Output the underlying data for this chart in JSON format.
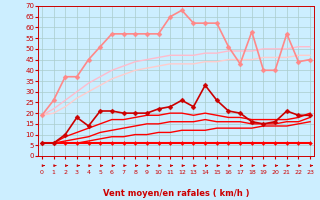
{
  "x": [
    0,
    1,
    2,
    3,
    4,
    5,
    6,
    7,
    8,
    9,
    10,
    11,
    12,
    13,
    14,
    15,
    16,
    17,
    18,
    19,
    20,
    21,
    22,
    23
  ],
  "lines": [
    {
      "y": [
        6,
        6,
        6,
        6,
        6,
        6,
        6,
        6,
        6,
        6,
        6,
        6,
        6,
        6,
        6,
        6,
        6,
        6,
        6,
        6,
        6,
        6,
        6,
        6
      ],
      "color": "#ff0000",
      "lw": 1.5,
      "marker": "D",
      "markersize": 2,
      "zorder": 4
    },
    {
      "y": [
        6,
        6,
        6,
        6,
        7,
        8,
        9,
        9,
        10,
        10,
        11,
        11,
        12,
        12,
        12,
        13,
        13,
        13,
        13,
        14,
        14,
        14,
        15,
        16
      ],
      "color": "#ff0000",
      "lw": 1.0,
      "marker": null,
      "zorder": 3
    },
    {
      "y": [
        6,
        6,
        7,
        8,
        9,
        11,
        12,
        13,
        14,
        15,
        15,
        16,
        16,
        16,
        17,
        16,
        16,
        16,
        15,
        15,
        15,
        16,
        16,
        18
      ],
      "color": "#ff0000",
      "lw": 1.0,
      "marker": null,
      "zorder": 3
    },
    {
      "y": [
        6,
        6,
        9,
        11,
        13,
        15,
        17,
        17,
        18,
        19,
        19,
        20,
        20,
        19,
        20,
        19,
        18,
        18,
        17,
        17,
        17,
        17,
        18,
        20
      ],
      "color": "#ff0000",
      "lw": 1.0,
      "marker": null,
      "zorder": 3
    },
    {
      "y": [
        6,
        6,
        10,
        18,
        14,
        21,
        21,
        20,
        20,
        20,
        22,
        23,
        26,
        23,
        33,
        26,
        21,
        20,
        16,
        15,
        16,
        21,
        19,
        19
      ],
      "color": "#cc0000",
      "lw": 1.2,
      "marker": "D",
      "markersize": 2.5,
      "zorder": 5
    },
    {
      "y": [
        19,
        26,
        37,
        37,
        45,
        51,
        57,
        57,
        57,
        57,
        57,
        65,
        68,
        62,
        62,
        62,
        51,
        43,
        58,
        40,
        40,
        57,
        44,
        45
      ],
      "color": "#ff8888",
      "lw": 1.2,
      "marker": "D",
      "markersize": 2.5,
      "zorder": 5
    },
    {
      "y": [
        19,
        22,
        26,
        30,
        34,
        37,
        40,
        42,
        44,
        45,
        46,
        47,
        47,
        47,
        48,
        48,
        49,
        49,
        49,
        50,
        50,
        50,
        51,
        51
      ],
      "color": "#ffbbcc",
      "lw": 1.0,
      "marker": null,
      "zorder": 2
    },
    {
      "y": [
        19,
        20,
        23,
        27,
        30,
        33,
        36,
        38,
        40,
        41,
        42,
        43,
        43,
        43,
        44,
        44,
        45,
        45,
        45,
        46,
        46,
        46,
        47,
        47
      ],
      "color": "#ffcccc",
      "lw": 1.0,
      "marker": null,
      "zorder": 2
    }
  ],
  "xlabel": "Vent moyen/en rafales ( km/h )",
  "yticks": [
    0,
    5,
    10,
    15,
    20,
    25,
    30,
    35,
    40,
    45,
    50,
    55,
    60,
    65,
    70
  ],
  "xlim": [
    -0.3,
    23.3
  ],
  "ylim": [
    0,
    70
  ],
  "bg_color": "#cceeff",
  "grid_color": "#aacccc",
  "tick_color": "#cc0000",
  "label_color": "#cc0000"
}
